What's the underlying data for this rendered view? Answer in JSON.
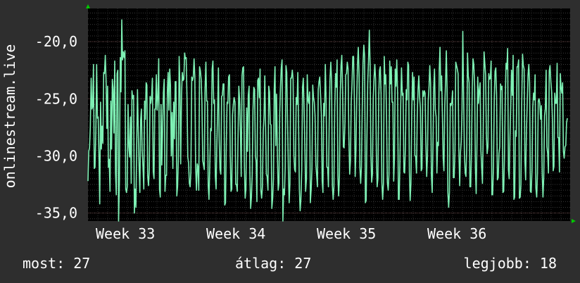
{
  "chart_data": {
    "type": "line",
    "ylabel": "onlinestream.live",
    "ylim": [
      -35.7,
      -17.1
    ],
    "x_ticks": [
      "Week 33",
      "Week 34",
      "Week 35",
      "Week 36"
    ],
    "y_ticks": [
      "-20,0",
      "-25,0",
      "-30,0",
      "-35,0"
    ],
    "y_tick_values": [
      -20,
      -25,
      -30,
      -35
    ],
    "grid": true,
    "series": [
      {
        "color": "#7ef0b4",
        "values": [
          -32.2,
          -29.6,
          -29.3,
          -27.5,
          -23.2,
          -25.9,
          -25.7,
          -22.0,
          -31.1,
          -31.0,
          -27.8,
          -22.0,
          -26.7,
          -26.6,
          -29.9,
          -34.2,
          -25.3,
          -29.4,
          -27.4,
          -28.9,
          -22.7,
          -22.8,
          -21.2,
          -23.4,
          -27.6,
          -23.9,
          -31.0,
          -30.3,
          -33.1,
          -25.2,
          -29.4,
          -23.3,
          -24.2,
          -28.0,
          -21.7,
          -31.5,
          -33.4,
          -22.8,
          -22.5,
          -35.7,
          -32.1,
          -21.4,
          -24.4,
          -18.1,
          -21.6,
          -20.9,
          -21.4,
          -20.8,
          -32.9,
          -33.2,
          -32.7,
          -25.5,
          -29.2,
          -30.1,
          -26.6,
          -32.4,
          -24.3,
          -25.0,
          -24.7,
          -35.0,
          -32.9,
          -34.5,
          -29.0,
          -24.2,
          -27.7,
          -31.0,
          -33.2,
          -26.9,
          -25.9,
          -29.5,
          -30.9,
          -32.9,
          -25.2,
          -26.8,
          -23.6,
          -23.8,
          -31.7,
          -32.6,
          -31.2,
          -24.8,
          -25.4,
          -24.8,
          -23.2,
          -31.4,
          -32.0,
          -25.9,
          -25.9,
          -22.9,
          -26.0,
          -24.8,
          -21.5,
          -32.9,
          -33.6,
          -25.5,
          -30.8,
          -27.3,
          -24.4,
          -23.3,
          -33.1,
          -31.7,
          -31.7,
          -24.3,
          -22.7,
          -26.0,
          -22.4,
          -23.8,
          -30.0,
          -26.2,
          -31.1,
          -25.3,
          -28.5,
          -23.5,
          -23.5,
          -33.5,
          -32.7,
          -30.2,
          -21.3,
          -23.7,
          -30.7,
          -24.7,
          -22.7,
          -23.4,
          -23.3,
          -21.0,
          -21.5,
          -21.4,
          -25.0,
          -30.1,
          -30.6,
          -32.4,
          -32.7,
          -31.4,
          -23.1,
          -23.4,
          -23.1,
          -21.5,
          -23.1,
          -30.9,
          -33.0,
          -30.7,
          -31.0,
          -33.0,
          -22.2,
          -22.5,
          -23.3,
          -25.4,
          -30.4,
          -30.8,
          -31.2,
          -24.2,
          -21.8,
          -25.2,
          -25.2,
          -32.6,
          -33.8,
          -31.0,
          -27.6,
          -27.8,
          -22.4,
          -21.7,
          -25.4,
          -25.1,
          -31.8,
          -32.9,
          -28.9,
          -26.1,
          -22.3,
          -28.6,
          -31.2,
          -31.6,
          -24.8,
          -24.7,
          -23.7,
          -23.7,
          -34.3,
          -34.1,
          -29.1,
          -25.3,
          -25.4,
          -23.1,
          -22.9,
          -29.8,
          -33.1,
          -32.9,
          -26.4,
          -25.5,
          -24.9,
          -25.3,
          -32.5,
          -32.5,
          -33.1,
          -28.3,
          -23.9,
          -25.2,
          -28.0,
          -31.8,
          -23.0,
          -22.3,
          -22.2,
          -30.9,
          -33.7,
          -32.9,
          -25.8,
          -29.6,
          -24.7,
          -23.9,
          -31.5,
          -34.6,
          -33.6,
          -31.6,
          -26.0,
          -24.0,
          -24.2,
          -30.0,
          -30.5,
          -34.0,
          -23.4,
          -23.2,
          -24.9,
          -22.4,
          -33.0,
          -33.7,
          -32.7,
          -27.8,
          -26.5,
          -23.0,
          -27.3,
          -31.6,
          -31.8,
          -33.0,
          -23.9,
          -24.4,
          -27.2,
          -27.3,
          -34.6,
          -33.7,
          -32.0,
          -24.2,
          -22.2,
          -29.1,
          -24.6,
          -29.9,
          -33.0,
          -32.4,
          -26.3,
          -23.9,
          -22.3,
          -21.6,
          -35.7,
          -32.9,
          -33.4,
          -31.0,
          -22.1,
          -22.7,
          -27.3,
          -31.2,
          -34.1,
          -32.4,
          -23.2,
          -23.2,
          -22.5,
          -23.3,
          -29.9,
          -31.2,
          -31.4,
          -24.9,
          -25.5,
          -22.7,
          -27.3,
          -32.9,
          -34.8,
          -33.8,
          -31.2,
          -24.0,
          -23.2,
          -25.8,
          -29.2,
          -33.1,
          -32.0,
          -22.9,
          -25.1,
          -25.4,
          -24.4,
          -34.1,
          -32.9,
          -31.1,
          -23.8,
          -24.9,
          -25.3,
          -26.5,
          -30.8,
          -31.7,
          -32.7,
          -24.2,
          -23.5,
          -23.1,
          -24.8,
          -26.4,
          -32.2,
          -33.2,
          -25.4,
          -26.5,
          -22.0,
          -25.2,
          -31.0,
          -31.0,
          -32.7,
          -27.0,
          -23.3,
          -21.8,
          -23.5,
          -32.6,
          -33.8,
          -32.7,
          -26.0,
          -22.8,
          -24.0,
          -21.6,
          -31.7,
          -33.5,
          -31.9,
          -24.6,
          -22.1,
          -21.2,
          -24.2,
          -29.2,
          -29.3,
          -27.1,
          -22.9,
          -22.8,
          -21.8,
          -22.4,
          -28.3,
          -31.6,
          -30.4,
          -25.3,
          -23.7,
          -21.3,
          -21.3,
          -25.2,
          -31.8,
          -29.6,
          -25.0,
          -22.0,
          -20.5,
          -23.0,
          -31.0,
          -32.4,
          -30.9,
          -26.0,
          -21.9,
          -20.3,
          -21.3,
          -34.1,
          -33.9,
          -28.5,
          -23.7,
          -21.6,
          -19.0,
          -22.0,
          -29.8,
          -32.3,
          -31.6,
          -24.9,
          -23.2,
          -22.0,
          -23.3,
          -29.9,
          -32.7,
          -32.0,
          -24.7,
          -22.5,
          -22.2,
          -24.6,
          -32.3,
          -33.8,
          -32.4,
          -21.3,
          -23.7,
          -22.9,
          -26.6,
          -32.3,
          -33.0,
          -31.6,
          -21.7,
          -23.7,
          -22.2,
          -25.3,
          -25.3,
          -32.2,
          -30.2,
          -22.4,
          -23.9,
          -21.6,
          -24.6,
          -33.8,
          -33.8,
          -30.5,
          -25.6,
          -22.3,
          -24.7,
          -24.5,
          -31.4,
          -31.5,
          -29.2,
          -24.2,
          -25.1,
          -21.8,
          -22.1,
          -31.4,
          -33.9,
          -32.4,
          -26.2,
          -22.7,
          -25.1,
          -23.1,
          -30.0,
          -30.0,
          -31.5,
          -26.4,
          -24.2,
          -23.0,
          -24.8,
          -25.8,
          -31.3,
          -31.1,
          -24.3,
          -24.8,
          -24.3,
          -24.5,
          -28.8,
          -31.8,
          -30.0,
          -25.1,
          -24.0,
          -22.1,
          -23.6,
          -31.7,
          -33.2,
          -29.3,
          -24.1,
          -22.4,
          -25.9,
          -26.6,
          -31.5,
          -28.8,
          -29.1,
          -22.5,
          -20.5,
          -24.3,
          -23.0,
          -26.4,
          -30.2,
          -31.3,
          -25.8,
          -23.5,
          -20.8,
          -24.2,
          -33.2,
          -34.5,
          -33.2,
          -25.4,
          -25.6,
          -25.3,
          -24.3,
          -31.9,
          -31.9,
          -29.6,
          -21.8,
          -22.1,
          -22.4,
          -22.8,
          -29.5,
          -32.6,
          -29.7,
          -28.7,
          -25.9,
          -19.1,
          -24.5,
          -29.9,
          -31.5,
          -31.8,
          -29.2,
          -21.0,
          -23.0,
          -23.6,
          -32.7,
          -32.7,
          -29.6,
          -24.1,
          -21.5,
          -22.0,
          -23.9,
          -31.1,
          -33.3,
          -29.1,
          -23.1,
          -25.4,
          -24.2,
          -23.6,
          -29.5,
          -31.0,
          -32.4,
          -28.0,
          -20.9,
          -21.9,
          -22.9,
          -28.2,
          -29.8,
          -29.2,
          -22.8,
          -23.3,
          -23.2,
          -21.7,
          -33.4,
          -33.4,
          -30.9,
          -25.0,
          -22.6,
          -22.3,
          -24.7,
          -32.1,
          -31.9,
          -29.8,
          -29.2,
          -23.7,
          -24.2,
          -23.9,
          -33.2,
          -33.1,
          -30.1,
          -25.2,
          -21.9,
          -22.4,
          -20.6,
          -31.2,
          -32.0,
          -28.4,
          -25.6,
          -22.5,
          -24.7,
          -21.2,
          -33.8,
          -33.6,
          -27.8,
          -28.3,
          -22.2,
          -22.2,
          -21.6,
          -33.7,
          -33.6,
          -32.5,
          -25.4,
          -21.1,
          -22.1,
          -22.4,
          -30.4,
          -32.1,
          -27.9,
          -25.2,
          -22.9,
          -22.0,
          -23.6,
          -33.1,
          -33.2,
          -31.3,
          -25.8,
          -24.5,
          -25.1,
          -22.9,
          -32.8,
          -33.6,
          -31.5,
          -25.2,
          -25.0,
          -25.4,
          -26.8,
          -25.6,
          -31.5,
          -33.6,
          -31.9,
          -26.5,
          -25.9,
          -22.5,
          -29.2,
          -29.8,
          -31.5,
          -22.6,
          -22.1,
          -23.5,
          -24.4,
          -26.8,
          -31.3,
          -30.9,
          -24.5,
          -25.4,
          -25.4,
          -21.9,
          -28.4,
          -28.4,
          -31.4,
          -22.8,
          -24.0,
          -24.5,
          -23.6,
          -29.6,
          -30.2,
          -29.2,
          -29.1,
          -27.1,
          -26.7
        ]
      }
    ]
  },
  "stats": {
    "now": "most: 27",
    "avg": "átlag: 27",
    "best": "legjobb: 18"
  },
  "colors": {
    "background": "#2e2e2e",
    "plot_background": "#000000",
    "line": "#7ef0b4",
    "axis_arrow": "#00c800",
    "text": "#ffffff"
  }
}
